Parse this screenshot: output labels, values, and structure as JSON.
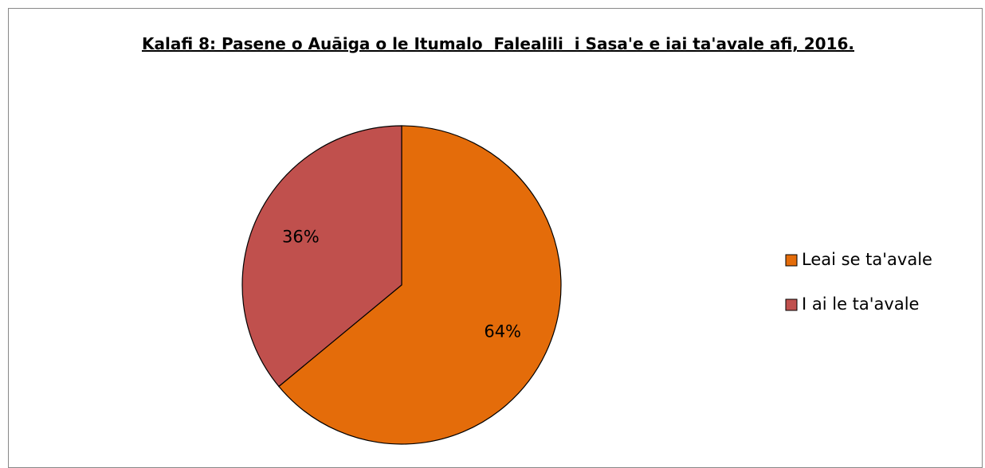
{
  "chart_data": {
    "type": "pie",
    "title": "Kalafi 8: Pasene o Auāiga o le Itumalo  Falealili  i Sasa'e e iai ta'avale afi, 2016.",
    "categories": [
      "Leai se ta'avale",
      "I ai le ta'avale"
    ],
    "values": [
      64,
      36
    ],
    "value_labels": [
      "64%",
      "36%"
    ],
    "colors": [
      "#E46C0A",
      "#C0504D"
    ],
    "legend": "right"
  }
}
